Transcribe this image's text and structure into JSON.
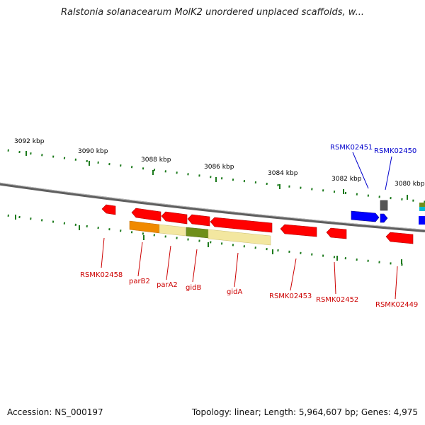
{
  "title": "Ralstonia solanacearum MolK2 unordered unplaced scaffolds, w...",
  "footer": {
    "accession": "Accession: NS_000197",
    "summary": "Topology: linear; Length: 5,964,607 bp; Genes: 4,975"
  },
  "colors": {
    "backbone": "#6f6f6f",
    "tick": "#1c7a1c",
    "red_gene": "#ff0000",
    "blue_gene": "#0000ff",
    "red_label": "#cc0000",
    "blue_label": "#0000cc"
  },
  "tick_labels": [
    "3092 kbp",
    "3090 kbp",
    "3088 kbp",
    "3086 kbp",
    "3084 kbp",
    "3082 kbp",
    "3080 kbp"
  ],
  "gene_labels": [
    {
      "text": "RSMK02458",
      "color": "red"
    },
    {
      "text": "parB2",
      "color": "red"
    },
    {
      "text": "parA2",
      "color": "red"
    },
    {
      "text": "gidB",
      "color": "red"
    },
    {
      "text": "gidA",
      "color": "red"
    },
    {
      "text": "RSMK02453",
      "color": "red"
    },
    {
      "text": "RSMK02452",
      "color": "red"
    },
    {
      "text": "RSMK02449",
      "color": "red"
    },
    {
      "text": "RSMK02451",
      "color": "blue"
    },
    {
      "text": "RSMK02450",
      "color": "blue"
    }
  ]
}
